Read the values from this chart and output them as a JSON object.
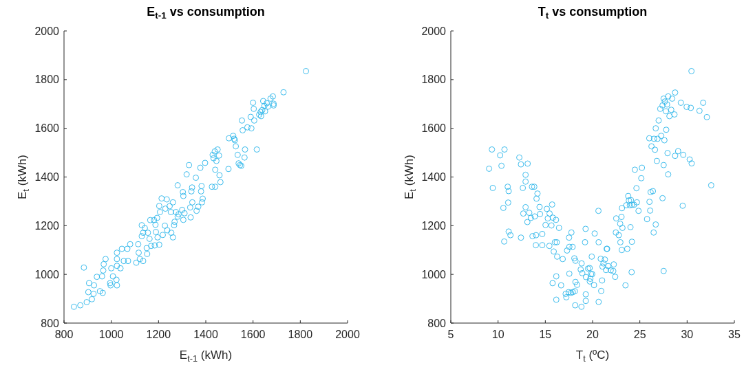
{
  "chart_data": [
    {
      "type": "scatter",
      "title": "E$_{t-1}$ vs consumption",
      "xlabel": "E$_{t-1}$ (kWh)",
      "ylabel": "E$_{t}$ (kWh)",
      "color": "#2cb5ea",
      "marker": "circle",
      "xlim": [
        800,
        2000
      ],
      "ylim": [
        800,
        2000
      ],
      "xticks": [
        800,
        1000,
        1200,
        1400,
        1600,
        1800,
        2000
      ],
      "yticks": [
        800,
        1000,
        1200,
        1400,
        1600,
        1800,
        2000
      ],
      "x": [
        842,
        869,
        884,
        896,
        906,
        903,
        918,
        925,
        927,
        939,
        952,
        964,
        961,
        966,
        968,
        976,
        995,
        997,
        1000,
        1007,
        1022,
        1024,
        1024,
        1024,
        1024,
        1039,
        1045,
        1053,
        1068,
        1071,
        1080,
        1106,
        1114,
        1116,
        1121,
        1129,
        1129,
        1135,
        1135,
        1142,
        1150,
        1152,
        1155,
        1162,
        1165,
        1169,
        1181,
        1184,
        1187,
        1189,
        1194,
        1196,
        1203,
        1206,
        1203,
        1213,
        1218,
        1227,
        1229,
        1235,
        1237,
        1247,
        1252,
        1254,
        1261,
        1261,
        1266,
        1268,
        1274,
        1281,
        1285,
        1300,
        1303,
        1305,
        1305,
        1310,
        1281,
        1319,
        1329,
        1334,
        1336,
        1339,
        1342,
        1343,
        1358,
        1361,
        1368,
        1377,
        1380,
        1382,
        1384,
        1387,
        1397,
        1426,
        1429,
        1433,
        1438,
        1440,
        1440,
        1445,
        1450,
        1456,
        1458,
        1462,
        1496,
        1498,
        1516,
        1520,
        1523,
        1527,
        1535,
        1539,
        1545,
        1550,
        1556,
        1553,
        1564,
        1566,
        1576,
        1590,
        1593,
        1600,
        1603,
        1605,
        1616,
        1626,
        1632,
        1634,
        1639,
        1643,
        1648,
        1651,
        1658,
        1663,
        1674,
        1684,
        1687,
        1687,
        1729,
        1824
      ],
      "values": [
        867,
        873,
        1028,
        886,
        964,
        927,
        898,
        920,
        955,
        990,
        931,
        924,
        992,
        1016,
        1042,
        1063,
        964,
        955,
        1025,
        992,
        978,
        955,
        1063,
        1089,
        1035,
        1025,
        1105,
        1055,
        1105,
        1055,
        1124,
        1048,
        1124,
        1089,
        1063,
        1157,
        1202,
        1055,
        1171,
        1190,
        1108,
        1084,
        1171,
        1146,
        1223,
        1117,
        1223,
        1119,
        1204,
        1174,
        1232,
        1152,
        1122,
        1256,
        1281,
        1312,
        1162,
        1200,
        1270,
        1308,
        1181,
        1280,
        1256,
        1171,
        1296,
        1152,
        1202,
        1216,
        1256,
        1237,
        1247,
        1265,
        1338,
        1322,
        1224,
        1251,
        1366,
        1411,
        1449,
        1275,
        1234,
        1341,
        1357,
        1296,
        1397,
        1261,
        1278,
        1438,
        1341,
        1363,
        1296,
        1311,
        1458,
        1360,
        1491,
        1477,
        1505,
        1360,
        1430,
        1466,
        1513,
        1488,
        1407,
        1379,
        1433,
        1559,
        1569,
        1557,
        1551,
        1526,
        1491,
        1456,
        1449,
        1446,
        1592,
        1632,
        1480,
        1513,
        1604,
        1647,
        1600,
        1705,
        1680,
        1632,
        1513,
        1656,
        1667,
        1650,
        1675,
        1712,
        1692,
        1670,
        1703,
        1689,
        1722,
        1731,
        1701,
        1694,
        1748,
        1835
      ]
    },
    {
      "type": "scatter",
      "title": "T$_{t}$ vs consumption",
      "xlabel": "T$_{t}$ (ºC)",
      "ylabel": "E$_{t}$ (kWh)",
      "color": "#2cb5ea",
      "marker": "circle",
      "xlim": [
        5,
        35
      ],
      "ylim": [
        800,
        2000
      ],
      "xticks": [
        5,
        10,
        15,
        20,
        25,
        30,
        35
      ],
      "yticks": [
        800,
        1000,
        1200,
        1400,
        1600,
        1800,
        2000
      ],
      "x": [
        9.05,
        9.35,
        9.44,
        10.22,
        10.36,
        10.56,
        10.68,
        10.65,
        11.02,
        11.12,
        11.07,
        11.12,
        11.31,
        12.25,
        12.42,
        12.42,
        12.62,
        12.67,
        12.91,
        12.91,
        12.91,
        13.13,
        13.1,
        13.3,
        13.47,
        13.59,
        13.64,
        13.83,
        13.88,
        14.0,
        14.02,
        14.07,
        14.17,
        14.39,
        14.44,
        14.68,
        14.68,
        15.02,
        15.16,
        15.26,
        15.45,
        15.43,
        15.65,
        15.72,
        15.79,
        15.77,
        15.89,
        16.01,
        16.13,
        16.16,
        16.16,
        16.21,
        16.25,
        16.45,
        16.67,
        16.84,
        17.15,
        17.22,
        17.3,
        17.47,
        17.51,
        17.54,
        17.54,
        17.76,
        17.71,
        17.88,
        17.9,
        18.07,
        18.12,
        18.16,
        18.19,
        18.19,
        18.36,
        18.74,
        18.84,
        18.82,
        18.91,
        19.2,
        19.26,
        19.28,
        19.28,
        19.3,
        19.52,
        19.69,
        19.71,
        19.76,
        19.84,
        19.91,
        19.96,
        20.15,
        20.22,
        20.62,
        20.64,
        20.64,
        20.86,
        20.91,
        21.01,
        21.05,
        21.15,
        21.3,
        21.42,
        21.49,
        21.54,
        21.66,
        21.92,
        22.19,
        22.24,
        22.39,
        22.46,
        22.5,
        22.77,
        22.92,
        22.94,
        23.06,
        23.09,
        23.11,
        23.16,
        23.48,
        23.57,
        23.67,
        23.77,
        23.84,
        23.94,
        24.01,
        24.06,
        24.13,
        24.16,
        24.16,
        24.38,
        24.47,
        24.64,
        24.69,
        24.86,
        25.15,
        25.22,
        25.76,
        26.0,
        26.02,
        26.09,
        26.14,
        26.23,
        26.38,
        26.46,
        26.5,
        26.6,
        26.68,
        26.68,
        26.8,
        26.87,
        26.99,
        27.16,
        27.26,
        27.4,
        27.4,
        27.52,
        27.52,
        27.52,
        27.6,
        27.64,
        27.76,
        27.79,
        27.88,
        27.93,
        28.0,
        28.0,
        28.13,
        28.32,
        28.42,
        28.66,
        28.73,
        28.73,
        29.05,
        29.34,
        29.53,
        29.59,
        29.95,
        30.27,
        30.39,
        30.48,
        30.46,
        31.31,
        31.7,
        32.09,
        32.55
      ],
      "values": [
        1434,
        1513,
        1355,
        1489,
        1446,
        1273,
        1513,
        1135,
        1360,
        1342,
        1295,
        1176,
        1161,
        1480,
        1452,
        1151,
        1355,
        1250,
        1409,
        1381,
        1276,
        1455,
        1215,
        1253,
        1232,
        1360,
        1157,
        1360,
        1238,
        1120,
        1161,
        1311,
        1332,
        1277,
        1248,
        1120,
        1166,
        1203,
        1269,
        1230,
        1250,
        1117,
        1201,
        1287,
        1233,
        964,
        1094,
        1132,
        1224,
        992,
        896,
        1132,
        1073,
        1191,
        955,
        1063,
        920,
        906,
        1098,
        927,
        1151,
        1113,
        1003,
        1172,
        924,
        1113,
        927,
        1066,
        931,
        873,
        969,
        1056,
        957,
        1020,
        1045,
        867,
        1005,
        1132,
        1187,
        918,
        891,
        989,
        1024,
        1026,
        971,
        982,
        1001,
        1073,
        1001,
        956,
        1168,
        1261,
        1132,
        887,
        1064,
        932,
        975,
        1032,
        1045,
        1061,
        1018,
        1105,
        1105,
        1034,
        1017,
        1014,
        1041,
        990,
        1172,
        1230,
        1161,
        1208,
        1132,
        1236,
        1100,
        1272,
        1191,
        955,
        1284,
        1105,
        1322,
        1304,
        1284,
        1194,
        1305,
        1009,
        1134,
        1286,
        1286,
        1430,
        1354,
        1296,
        1261,
        1395,
        1438,
        1227,
        1559,
        1298,
        1262,
        1338,
        1526,
        1342,
        1172,
        1557,
        1512,
        1205,
        1600,
        1466,
        1557,
        1632,
        1680,
        1569,
        1313,
        1694,
        1449,
        1014,
        1722,
        1551,
        1710,
        1670,
        1594,
        1698,
        1498,
        1411,
        1731,
        1650,
        1676,
        1722,
        1657,
        1747,
        1487,
        1506,
        1705,
        1282,
        1491,
        1688,
        1472,
        1684,
        1456,
        1835,
        1672,
        1705,
        1646,
        1366
      ]
    }
  ]
}
